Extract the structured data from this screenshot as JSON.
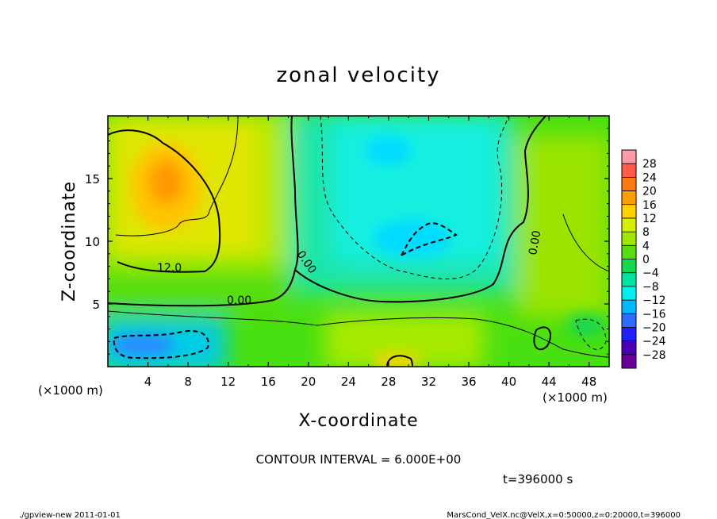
{
  "chart_data": {
    "type": "heatmap",
    "title": "zonal velocity",
    "xlabel": "X-coordinate",
    "ylabel": "Z-coordinate",
    "x_unit": "(×1000 m)",
    "y_unit": "(×1000 m)",
    "xlim": [
      0,
      50
    ],
    "ylim": [
      0,
      20
    ],
    "x_ticks": [
      4,
      8,
      12,
      16,
      20,
      24,
      28,
      32,
      36,
      40,
      44,
      48
    ],
    "y_ticks": [
      5,
      10,
      15
    ],
    "colorbar_labels": [
      "28",
      "24",
      "20",
      "16",
      "12",
      "8",
      "4",
      "0",
      "−4",
      "−8",
      "−12",
      "−16",
      "−20",
      "−24",
      "−28"
    ],
    "colorbar_colors": [
      "#ff9aa8",
      "#ff5a4a",
      "#ff7a10",
      "#ff9e00",
      "#ffd200",
      "#d6f000",
      "#9ee800",
      "#58dd10",
      "#14d850",
      "#00e2a0",
      "#00f0f0",
      "#00b8ff",
      "#2d6cff",
      "#2020ff",
      "#4a00b4",
      "#6a0098"
    ],
    "contour_labels": [
      "12.0",
      "0.00",
      "0.00",
      "0.00"
    ],
    "contour_interval_text": "CONTOUR INTERVAL = 6.000E+00",
    "time_text": "t=396000 s",
    "footer_left": "./gpview-new   2011-01-01",
    "footer_right": "MarsCond_VelX.nc@VelX,x=0:50000,z=0:20000,t=396000",
    "regions": [
      {
        "x": 6,
        "z": 13.5,
        "value": 14
      },
      {
        "x": 4,
        "z": 12,
        "value": 12
      },
      {
        "x": 30,
        "z": 16,
        "value": -10
      },
      {
        "x": 33,
        "z": 10,
        "value": -12
      },
      {
        "x": 5,
        "z": 1.5,
        "value": -16
      },
      {
        "x": 30,
        "z": 0.8,
        "value": 12
      },
      {
        "x": 20,
        "z": 8,
        "value": 0
      },
      {
        "x": 46,
        "z": 10,
        "value": 2
      }
    ]
  }
}
